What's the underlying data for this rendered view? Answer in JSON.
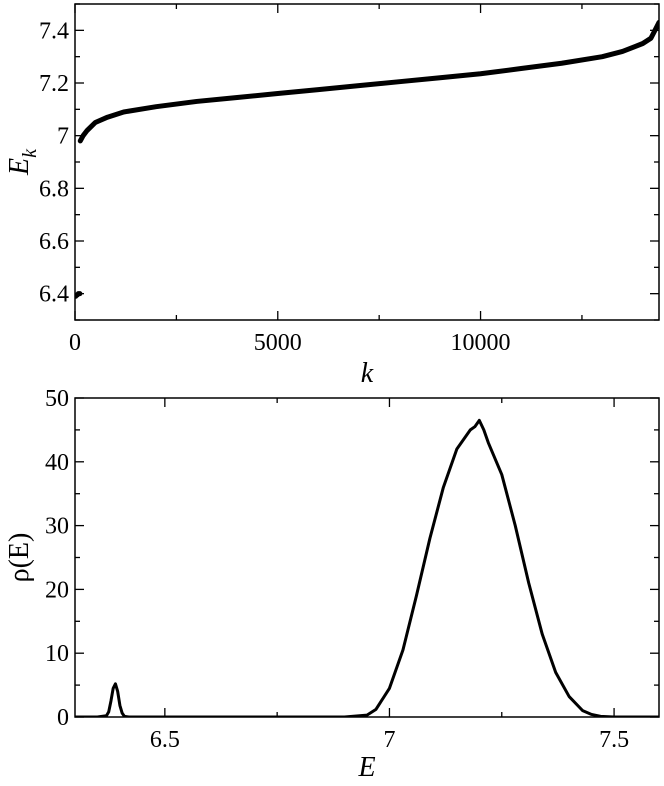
{
  "chart_data": [
    {
      "type": "line",
      "xlabel": "k",
      "ylabel": "E",
      "ylabel_subscript": "k",
      "xlim": [
        0,
        14400
      ],
      "ylim": [
        6.3,
        7.5
      ],
      "xticks": [
        0,
        5000,
        10000
      ],
      "yticks": [
        6.4,
        6.6,
        6.8,
        7.0,
        7.2,
        7.4
      ],
      "xtick_labels": [
        "0",
        "5000",
        "10000"
      ],
      "ytick_labels": [
        "6.4",
        "6.6",
        "6.8",
        "7",
        "7.2",
        "7.4"
      ],
      "grid": false,
      "series": [
        {
          "color": "#000000",
          "x": [
            0,
            20,
            40,
            60,
            80,
            100,
            120
          ],
          "y": [
            6.39,
            6.39,
            6.395,
            6.395,
            6.4,
            6.4,
            6.4
          ]
        },
        {
          "color": "#000000",
          "x": [
            130,
            200,
            300,
            500,
            800,
            1200,
            2000,
            3000,
            4000,
            5000,
            6000,
            7000,
            8000,
            9000,
            10000,
            11000,
            12000,
            13000,
            13500,
            14000,
            14200,
            14300,
            14400
          ],
          "y": [
            6.98,
            7.0,
            7.02,
            7.05,
            7.07,
            7.09,
            7.11,
            7.13,
            7.145,
            7.16,
            7.175,
            7.19,
            7.205,
            7.22,
            7.235,
            7.255,
            7.275,
            7.3,
            7.32,
            7.35,
            7.37,
            7.4,
            7.43
          ]
        }
      ]
    },
    {
      "type": "line",
      "xlabel": "E",
      "ylabel": "ρ(E)",
      "xlim": [
        6.3,
        7.6
      ],
      "ylim": [
        0,
        50
      ],
      "xticks": [
        6.5,
        7.0,
        7.5
      ],
      "yticks": [
        0,
        10,
        20,
        30,
        40,
        50
      ],
      "xtick_labels": [
        "6.5",
        "7",
        "7.5"
      ],
      "ytick_labels": [
        "0",
        "10",
        "20",
        "30",
        "40",
        "50"
      ],
      "grid": false,
      "series": [
        {
          "color": "#000000",
          "x": [
            6.3,
            6.35,
            6.37,
            6.375,
            6.38,
            6.385,
            6.39,
            6.395,
            6.4,
            6.405,
            6.41,
            6.42,
            6.5,
            6.6,
            6.7,
            6.8,
            6.9,
            6.95,
            6.97,
            7.0,
            7.03,
            7.06,
            7.09,
            7.12,
            7.15,
            7.18,
            7.19,
            7.2,
            7.21,
            7.22,
            7.25,
            7.28,
            7.31,
            7.34,
            7.37,
            7.4,
            7.43,
            7.45,
            7.47,
            7.5,
            7.6
          ],
          "y": [
            0,
            0,
            0.2,
            0.8,
            2.5,
            4.5,
            5.2,
            4.0,
            1.8,
            0.6,
            0.1,
            0,
            0,
            0,
            0,
            0,
            0,
            0.3,
            1.2,
            4.5,
            10.5,
            19,
            28,
            36,
            42,
            45,
            45.5,
            46.5,
            45,
            43,
            38,
            30,
            21,
            13,
            7,
            3.2,
            1.0,
            0.4,
            0.1,
            0,
            0
          ]
        }
      ]
    }
  ]
}
